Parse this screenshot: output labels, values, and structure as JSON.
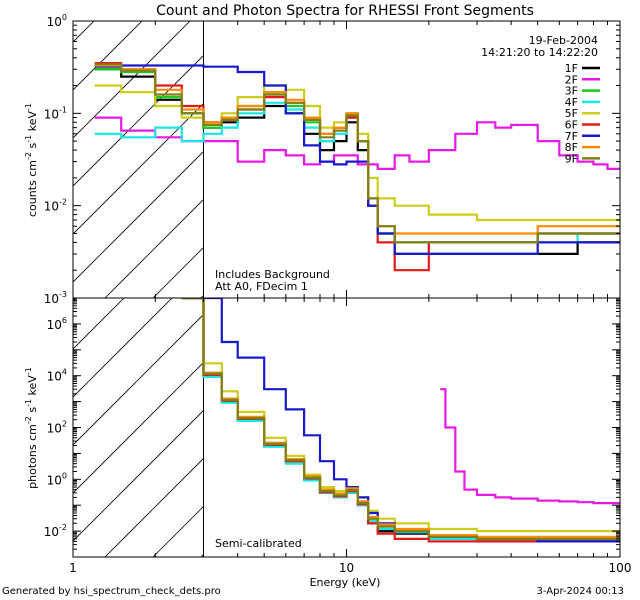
{
  "title": "Count and Photon Spectra for RHESSI Front Segments",
  "date": "19-Feb-2004",
  "time_range": "14:21:20 to 14:22:20",
  "xlabel": "Energy (keV)",
  "footer_left": "Generated by hsi_spectrum_check_dets.pro",
  "footer_right": "3-Apr-2024 00:13",
  "x_ticks": [
    "1",
    "10",
    "100"
  ],
  "colors": {
    "1F": "#000000",
    "2F": "#e619e6",
    "3F": "#19cc19",
    "4F": "#19e6e6",
    "5F": "#cccc19",
    "6F": "#e61919",
    "7F": "#1919cc",
    "8F": "#ff8c00",
    "9F": "#808019"
  },
  "chart_data": [
    {
      "type": "line",
      "panel": "top",
      "ylabel": "counts cm⁻² s⁻¹ keV⁻¹",
      "ylabel_parts": [
        "counts cm",
        "-2",
        " s",
        "-1",
        " keV",
        "-1"
      ],
      "xlim": [
        1,
        100
      ],
      "xscale": "log",
      "ylim": [
        0.001,
        1
      ],
      "yscale": "log",
      "y_ticks": [
        {
          "v": 1,
          "base": "10",
          "exp": "0"
        },
        {
          "v": 0.1,
          "base": "10",
          "exp": "-1"
        },
        {
          "v": 0.01,
          "base": "10",
          "exp": "-2"
        },
        {
          "v": 0.001,
          "base": "10",
          "exp": "-3"
        }
      ],
      "shaded_below_keV": 3,
      "annotations": [
        "Includes Background",
        "Att A0, FDecim 1"
      ],
      "legend": [
        "1F",
        "2F",
        "3F",
        "4F",
        "5F",
        "6F",
        "7F",
        "8F",
        "9F"
      ],
      "series": [
        {
          "name": "1F",
          "x": [
            1.2,
            1.5,
            2.0,
            2.5,
            3.0,
            3.5,
            4.0,
            5.0,
            6.0,
            7.0,
            8.0,
            9.0,
            10.0,
            11.0,
            12.0,
            13.0,
            15.0,
            20.0,
            30.0,
            50.0,
            70.0,
            100.0
          ],
          "values": [
            0.3,
            0.25,
            0.14,
            0.1,
            0.07,
            0.08,
            0.09,
            0.12,
            0.1,
            0.06,
            0.04,
            0.05,
            0.08,
            0.04,
            0.01,
            0.005,
            0.003,
            0.003,
            0.003,
            0.003,
            0.004,
            0.004
          ]
        },
        {
          "name": "2F",
          "x": [
            1.2,
            1.5,
            2.0,
            2.5,
            3.0,
            4.0,
            5.0,
            6.0,
            7.0,
            8.0,
            9.0,
            10.0,
            11.0,
            13.0,
            15.0,
            17.0,
            20.0,
            25.0,
            30.0,
            35.0,
            40.0,
            50.0,
            60.0,
            70.0,
            80.0,
            90.0,
            100.0
          ],
          "values": [
            0.09,
            0.065,
            0.055,
            0.05,
            0.05,
            0.03,
            0.04,
            0.035,
            0.028,
            0.03,
            0.035,
            0.035,
            0.028,
            0.025,
            0.035,
            0.03,
            0.04,
            0.06,
            0.08,
            0.07,
            0.075,
            0.05,
            0.035,
            0.03,
            0.028,
            0.025,
            0.025
          ]
        },
        {
          "name": "3F",
          "x": [
            1.2,
            1.5,
            2.0,
            2.5,
            3.0,
            3.5,
            4.0,
            5.0,
            6.0,
            7.0,
            8.0,
            9.0,
            10.0,
            11.0,
            12.0,
            13.0,
            15.0,
            20.0,
            30.0,
            50.0,
            70.0,
            100.0
          ],
          "values": [
            0.3,
            0.28,
            0.15,
            0.1,
            0.07,
            0.09,
            0.12,
            0.16,
            0.12,
            0.08,
            0.05,
            0.07,
            0.1,
            0.05,
            0.01,
            0.005,
            0.004,
            0.004,
            0.004,
            0.005,
            0.005,
            0.005
          ]
        },
        {
          "name": "4F",
          "x": [
            1.2,
            1.5,
            2.0,
            2.5,
            3.0,
            3.5,
            4.0,
            5.0,
            6.0,
            7.0,
            8.0,
            9.0,
            10.0,
            11.0,
            12.0,
            13.0,
            15.0,
            20.0,
            30.0,
            50.0,
            70.0,
            100.0
          ],
          "values": [
            0.06,
            0.055,
            0.07,
            0.05,
            0.06,
            0.07,
            0.1,
            0.13,
            0.11,
            0.07,
            0.05,
            0.06,
            0.09,
            0.05,
            0.01,
            0.005,
            0.003,
            0.004,
            0.004,
            0.004,
            0.005,
            0.005
          ]
        },
        {
          "name": "5F",
          "x": [
            1.2,
            1.5,
            2.0,
            2.5,
            3.0,
            3.5,
            4.0,
            5.0,
            6.0,
            7.0,
            8.0,
            9.0,
            10.0,
            11.0,
            12.0,
            13.0,
            15.0,
            20.0,
            30.0,
            50.0,
            70.0,
            100.0
          ],
          "values": [
            0.2,
            0.17,
            0.12,
            0.09,
            0.08,
            0.1,
            0.15,
            0.2,
            0.18,
            0.12,
            0.07,
            0.08,
            0.1,
            0.06,
            0.02,
            0.012,
            0.01,
            0.008,
            0.007,
            0.007,
            0.007,
            0.007
          ]
        },
        {
          "name": "6F",
          "x": [
            1.2,
            1.5,
            2.0,
            2.5,
            3.0,
            3.5,
            4.0,
            5.0,
            6.0,
            7.0,
            8.0,
            9.0,
            10.0,
            11.0,
            12.0,
            13.0,
            15.0,
            20.0,
            30.0,
            50.0,
            70.0,
            100.0
          ],
          "values": [
            0.35,
            0.3,
            0.2,
            0.12,
            0.08,
            0.09,
            0.11,
            0.15,
            0.13,
            0.09,
            0.06,
            0.07,
            0.09,
            0.05,
            0.01,
            0.004,
            0.002,
            0.004,
            0.004,
            0.005,
            0.005,
            0.005
          ]
        },
        {
          "name": "7F",
          "x": [
            1.2,
            1.5,
            2.0,
            2.5,
            3.0,
            4.0,
            5.0,
            6.0,
            7.0,
            8.0,
            9.0,
            10.0,
            11.0,
            12.0,
            13.0,
            15.0,
            20.0,
            30.0,
            50.0,
            70.0,
            100.0
          ],
          "values": [
            0.32,
            0.33,
            0.33,
            0.33,
            0.32,
            0.28,
            0.2,
            0.1,
            0.045,
            0.03,
            0.028,
            0.03,
            0.03,
            0.01,
            0.005,
            0.003,
            0.003,
            0.003,
            0.004,
            0.004,
            0.004
          ]
        },
        {
          "name": "8F",
          "x": [
            1.2,
            1.5,
            2.0,
            2.5,
            3.0,
            3.5,
            4.0,
            5.0,
            6.0,
            7.0,
            8.0,
            9.0,
            10.0,
            11.0,
            12.0,
            13.0,
            15.0,
            20.0,
            30.0,
            50.0,
            70.0,
            100.0
          ],
          "values": [
            0.33,
            0.3,
            0.18,
            0.11,
            0.08,
            0.09,
            0.12,
            0.17,
            0.14,
            0.09,
            0.06,
            0.07,
            0.1,
            0.05,
            0.012,
            0.006,
            0.005,
            0.005,
            0.005,
            0.006,
            0.006,
            0.006
          ]
        },
        {
          "name": "9F",
          "x": [
            1.2,
            1.5,
            2.0,
            2.5,
            3.0,
            3.5,
            4.0,
            5.0,
            6.0,
            7.0,
            8.0,
            9.0,
            10.0,
            11.0,
            12.0,
            13.0,
            15.0,
            20.0,
            30.0,
            50.0,
            70.0,
            100.0
          ],
          "values": [
            0.34,
            0.29,
            0.16,
            0.1,
            0.075,
            0.085,
            0.11,
            0.16,
            0.13,
            0.085,
            0.055,
            0.065,
            0.095,
            0.05,
            0.012,
            0.006,
            0.004,
            0.004,
            0.004,
            0.005,
            0.005,
            0.005
          ]
        }
      ]
    },
    {
      "type": "line",
      "panel": "bottom",
      "ylabel": "photons cm⁻² s⁻¹ keV⁻¹",
      "ylabel_parts": [
        "photons cm",
        "-2",
        " s",
        "-1",
        " keV",
        "-1"
      ],
      "xlim": [
        1,
        100
      ],
      "xscale": "log",
      "ylim": [
        0.001,
        10000000
      ],
      "yscale": "log",
      "y_ticks": [
        {
          "v": 1000000,
          "base": "10",
          "exp": "6"
        },
        {
          "v": 10000,
          "base": "10",
          "exp": "4"
        },
        {
          "v": 100,
          "base": "10",
          "exp": "2"
        },
        {
          "v": 1,
          "base": "10",
          "exp": "0"
        },
        {
          "v": 0.01,
          "base": "10",
          "exp": "-2"
        }
      ],
      "shaded_below_keV": 3,
      "annotations": [
        "Semi-calibrated"
      ],
      "series": [
        {
          "name": "1F",
          "x": [
            2.5,
            3.0,
            3.5,
            4.0,
            5.0,
            6.0,
            7.0,
            8.0,
            9.0,
            10.0,
            11.0,
            12.0,
            13.0,
            15.0,
            20.0,
            30.0,
            50.0,
            70.0,
            100.0
          ],
          "values": [
            10000000,
            10000,
            1000,
            200,
            20,
            5,
            1,
            0.3,
            0.2,
            0.3,
            0.1,
            0.02,
            0.01,
            0.008,
            0.005,
            0.004,
            0.004,
            0.004,
            0.004
          ]
        },
        {
          "name": "2F",
          "x": [
            22.0,
            23.0,
            25.0,
            27.0,
            30.0,
            35.0,
            40.0,
            50.0,
            60.0,
            70.0,
            80.0,
            90.0,
            100.0
          ],
          "values": [
            3000,
            100,
            2,
            0.4,
            0.25,
            0.2,
            0.18,
            0.15,
            0.14,
            0.13,
            0.12,
            0.12,
            0.12
          ]
        },
        {
          "name": "3F",
          "x": [
            2.5,
            3.0,
            3.5,
            4.0,
            5.0,
            6.0,
            7.0,
            8.0,
            9.0,
            10.0,
            11.0,
            12.0,
            13.0,
            15.0,
            20.0,
            30.0,
            50.0,
            70.0,
            100.0
          ],
          "values": [
            10000000,
            12000,
            1200,
            250,
            25,
            6,
            1.2,
            0.35,
            0.25,
            0.4,
            0.12,
            0.03,
            0.015,
            0.01,
            0.006,
            0.005,
            0.005,
            0.005,
            0.005
          ]
        },
        {
          "name": "4F",
          "x": [
            2.5,
            3.0,
            3.5,
            4.0,
            5.0,
            6.0,
            7.0,
            8.0,
            9.0,
            10.0,
            11.0,
            12.0,
            13.0,
            15.0,
            20.0,
            30.0,
            50.0,
            70.0,
            100.0
          ],
          "values": [
            10000000,
            9000,
            900,
            180,
            18,
            4,
            0.9,
            0.3,
            0.2,
            0.3,
            0.1,
            0.025,
            0.012,
            0.009,
            0.005,
            0.004,
            0.004,
            0.004,
            0.004
          ]
        },
        {
          "name": "5F",
          "x": [
            2.5,
            3.0,
            3.5,
            4.0,
            5.0,
            6.0,
            7.0,
            8.0,
            9.0,
            10.0,
            11.0,
            12.0,
            13.0,
            15.0,
            20.0,
            30.0,
            50.0,
            70.0,
            100.0
          ],
          "values": [
            10000000,
            30000,
            2500,
            400,
            40,
            8,
            1.5,
            0.5,
            0.35,
            0.5,
            0.2,
            0.06,
            0.03,
            0.02,
            0.012,
            0.01,
            0.01,
            0.01,
            0.01
          ]
        },
        {
          "name": "6F",
          "x": [
            2.5,
            3.0,
            3.5,
            4.0,
            5.0,
            6.0,
            7.0,
            8.0,
            9.0,
            10.0,
            11.0,
            12.0,
            13.0,
            15.0,
            20.0,
            30.0,
            50.0,
            70.0,
            100.0
          ],
          "values": [
            10000000,
            11000,
            1100,
            220,
            22,
            5,
            1.1,
            0.32,
            0.22,
            0.35,
            0.11,
            0.02,
            0.008,
            0.005,
            0.004,
            0.004,
            0.004,
            0.004,
            0.004
          ]
        },
        {
          "name": "7F",
          "x": [
            2.5,
            3.0,
            3.5,
            4.0,
            5.0,
            6.0,
            7.0,
            8.0,
            9.0,
            10.0,
            11.0,
            12.0,
            13.0,
            15.0,
            20.0,
            30.0,
            50.0,
            70.0,
            100.0
          ],
          "values": [
            10000000,
            10000000,
            200000,
            50000,
            3000,
            500,
            50,
            5,
            1,
            0.5,
            0.2,
            0.05,
            0.02,
            0.01,
            0.006,
            0.005,
            0.004,
            0.004,
            0.004
          ]
        },
        {
          "name": "8F",
          "x": [
            2.5,
            3.0,
            3.5,
            4.0,
            5.0,
            6.0,
            7.0,
            8.0,
            9.0,
            10.0,
            11.0,
            12.0,
            13.0,
            15.0,
            20.0,
            30.0,
            50.0,
            70.0,
            100.0
          ],
          "values": [
            10000000,
            13000,
            1300,
            260,
            26,
            6,
            1.3,
            0.4,
            0.28,
            0.45,
            0.14,
            0.035,
            0.018,
            0.012,
            0.007,
            0.006,
            0.006,
            0.006,
            0.006
          ]
        },
        {
          "name": "9F",
          "x": [
            2.5,
            3.0,
            3.5,
            4.0,
            5.0,
            6.0,
            7.0,
            8.0,
            9.0,
            10.0,
            11.0,
            12.0,
            13.0,
            15.0,
            20.0,
            30.0,
            50.0,
            70.0,
            100.0
          ],
          "values": [
            10000000,
            12000,
            1150,
            230,
            23,
            5.5,
            1.15,
            0.35,
            0.24,
            0.38,
            0.12,
            0.03,
            0.015,
            0.01,
            0.006,
            0.005,
            0.005,
            0.005,
            0.005
          ]
        }
      ]
    }
  ]
}
